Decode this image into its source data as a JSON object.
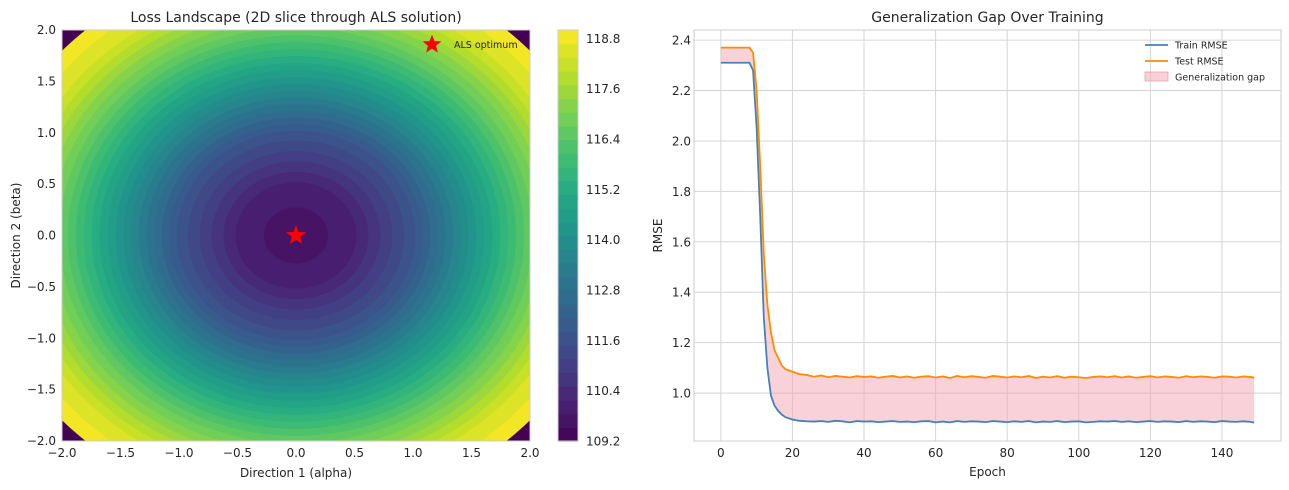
{
  "chart_data": [
    {
      "type": "heatmap",
      "title": "Loss Landscape (2D slice through ALS solution)",
      "xlabel": "Direction 1 (alpha)",
      "ylabel": "Direction 2 (beta)",
      "xlim": [
        -2,
        2
      ],
      "ylim": [
        -2,
        2
      ],
      "xticks": [
        -2.0,
        -1.5,
        -1.0,
        -0.5,
        0.0,
        0.5,
        1.0,
        1.5,
        2.0
      ],
      "yticks": [
        -2.0,
        -1.5,
        -1.0,
        -0.5,
        0.0,
        0.5,
        1.0,
        1.5,
        2.0
      ],
      "xtick_labels": [
        "−2.0",
        "−1.5",
        "−1.0",
        "−0.5",
        "0.0",
        "0.5",
        "1.0",
        "1.5",
        "2.0"
      ],
      "ytick_labels": [
        "−2.0",
        "−1.5",
        "−1.0",
        "−0.5",
        "0.0",
        "0.5",
        "1.0",
        "1.5",
        "2.0"
      ],
      "colormap": "viridis",
      "contour": {
        "center": [
          0,
          0
        ],
        "min_value": 109.2,
        "max_value": 119.0,
        "levels": 30,
        "loss_at_radius": [
          [
            0,
            109.2
          ],
          [
            0.5,
            109.8
          ],
          [
            1.0,
            111.4
          ],
          [
            1.5,
            113.9
          ],
          [
            2.0,
            116.3
          ],
          [
            2.4,
            118.0
          ],
          [
            2.83,
            119.0
          ]
        ]
      },
      "colorbar": {
        "range": [
          109.2,
          119.0
        ],
        "ticks": [
          109.2,
          110.4,
          111.6,
          112.8,
          114.0,
          115.2,
          116.4,
          117.6,
          118.8
        ],
        "tick_labels": [
          "109.2",
          "110.4",
          "111.6",
          "112.8",
          "114.0",
          "115.2",
          "116.4",
          "117.6",
          "118.8"
        ]
      },
      "points": [
        {
          "name": "ALS optimum",
          "x": 0.0,
          "y": 0.0,
          "marker": "star",
          "color": "#ff0000"
        }
      ],
      "legend": {
        "position": "top-right",
        "entries": [
          "ALS optimum"
        ]
      }
    },
    {
      "type": "line",
      "title": "Generalization Gap Over Training",
      "xlabel": "Epoch",
      "ylabel": "RMSE",
      "xlim": [
        -7.5,
        156.5
      ],
      "ylim": [
        0.81,
        2.44
      ],
      "xticks": [
        0,
        20,
        40,
        60,
        80,
        100,
        120,
        140
      ],
      "xtick_labels": [
        "0",
        "20",
        "40",
        "60",
        "80",
        "100",
        "120",
        "140"
      ],
      "yticks": [
        1.0,
        1.2,
        1.4,
        1.6,
        1.8,
        2.0,
        2.2,
        2.4
      ],
      "ytick_labels": [
        "1.0",
        "1.2",
        "1.4",
        "1.6",
        "1.8",
        "2.0",
        "2.2",
        "2.4"
      ],
      "grid": true,
      "series": [
        {
          "name": "Train RMSE",
          "color": "#4682b4",
          "x": [
            0,
            8,
            9,
            10,
            11,
            12,
            13,
            14,
            15,
            16,
            17,
            18,
            19,
            20,
            22,
            24,
            26,
            28,
            30,
            32,
            34,
            36,
            38,
            40,
            42,
            44,
            46,
            48,
            50,
            52,
            54,
            56,
            58,
            60,
            62,
            64,
            66,
            68,
            70,
            72,
            74,
            76,
            78,
            80,
            82,
            84,
            86,
            88,
            90,
            92,
            94,
            96,
            98,
            100,
            102,
            104,
            106,
            108,
            110,
            112,
            114,
            116,
            118,
            120,
            122,
            124,
            126,
            128,
            130,
            132,
            134,
            136,
            138,
            140,
            142,
            144,
            146,
            148,
            149
          ],
          "y": [
            2.31,
            2.31,
            2.28,
            2.05,
            1.7,
            1.3,
            1.1,
            0.99,
            0.95,
            0.93,
            0.915,
            0.905,
            0.9,
            0.895,
            0.89,
            0.888,
            0.887,
            0.889,
            0.886,
            0.89,
            0.888,
            0.884,
            0.889,
            0.887,
            0.888,
            0.885,
            0.887,
            0.889,
            0.886,
            0.887,
            0.885,
            0.888,
            0.889,
            0.884,
            0.887,
            0.884,
            0.889,
            0.886,
            0.888,
            0.887,
            0.885,
            0.889,
            0.887,
            0.885,
            0.888,
            0.886,
            0.889,
            0.884,
            0.887,
            0.886,
            0.889,
            0.885,
            0.887,
            0.888,
            0.884,
            0.886,
            0.888,
            0.887,
            0.889,
            0.886,
            0.888,
            0.885,
            0.887,
            0.889,
            0.886,
            0.888,
            0.887,
            0.885,
            0.889,
            0.886,
            0.888,
            0.887,
            0.885,
            0.889,
            0.887,
            0.886,
            0.888,
            0.886,
            0.883
          ]
        },
        {
          "name": "Test RMSE",
          "color": "#ff8c00",
          "x": [
            0,
            8,
            9,
            10,
            11,
            12,
            13,
            14,
            15,
            16,
            17,
            18,
            19,
            20,
            22,
            24,
            26,
            28,
            30,
            32,
            34,
            36,
            38,
            40,
            42,
            44,
            46,
            48,
            50,
            52,
            54,
            56,
            58,
            60,
            62,
            64,
            66,
            68,
            70,
            72,
            74,
            76,
            78,
            80,
            82,
            84,
            86,
            88,
            90,
            92,
            94,
            96,
            98,
            100,
            102,
            104,
            106,
            108,
            110,
            112,
            114,
            116,
            118,
            120,
            122,
            124,
            126,
            128,
            130,
            132,
            134,
            136,
            138,
            140,
            142,
            144,
            146,
            148,
            149
          ],
          "y": [
            2.37,
            2.37,
            2.35,
            2.2,
            1.9,
            1.55,
            1.35,
            1.24,
            1.17,
            1.14,
            1.11,
            1.095,
            1.09,
            1.085,
            1.075,
            1.072,
            1.065,
            1.07,
            1.063,
            1.068,
            1.065,
            1.062,
            1.067,
            1.064,
            1.066,
            1.061,
            1.065,
            1.068,
            1.062,
            1.066,
            1.061,
            1.065,
            1.067,
            1.062,
            1.066,
            1.06,
            1.068,
            1.063,
            1.067,
            1.064,
            1.061,
            1.068,
            1.065,
            1.062,
            1.066,
            1.063,
            1.068,
            1.06,
            1.065,
            1.062,
            1.067,
            1.061,
            1.065,
            1.063,
            1.06,
            1.064,
            1.066,
            1.063,
            1.067,
            1.062,
            1.066,
            1.061,
            1.064,
            1.067,
            1.062,
            1.066,
            1.064,
            1.061,
            1.067,
            1.063,
            1.066,
            1.064,
            1.061,
            1.066,
            1.065,
            1.062,
            1.066,
            1.064,
            1.061
          ]
        }
      ],
      "fill_between": {
        "name": "Generalization gap",
        "color": "#f4a3b3",
        "between": [
          "Train RMSE",
          "Test RMSE"
        ]
      },
      "legend": {
        "position": "top-right",
        "entries": [
          "Train RMSE",
          "Test RMSE",
          "Generalization gap"
        ]
      }
    }
  ]
}
